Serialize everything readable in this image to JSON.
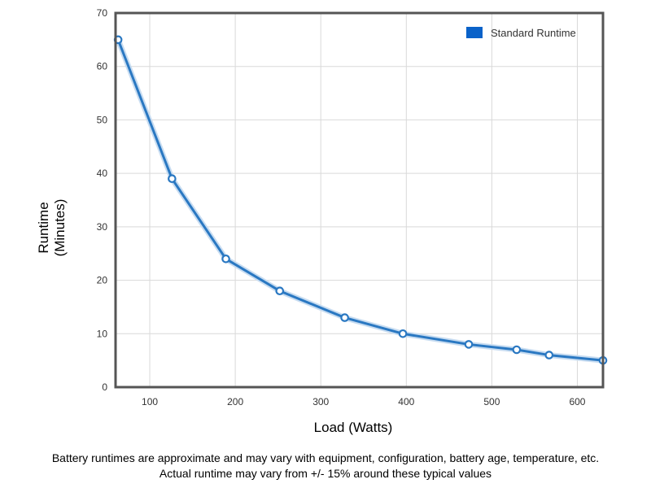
{
  "chart_data": {
    "type": "line",
    "xlabel": "Load (Watts)",
    "ylabel_lines": [
      "Runtime",
      "(Minutes)"
    ],
    "xlim": [
      60,
      630
    ],
    "ylim": [
      0,
      70
    ],
    "xticks": [
      100,
      200,
      300,
      400,
      500,
      600
    ],
    "yticks": [
      0,
      10,
      20,
      30,
      40,
      50,
      60,
      70
    ],
    "grid": true,
    "legend_position": "top-right",
    "series": [
      {
        "name": "Standard Runtime",
        "color": "#2a78c2",
        "x": [
          63,
          126,
          189,
          252,
          328,
          396,
          473,
          529,
          567,
          630
        ],
        "y": [
          65,
          39,
          24,
          18,
          13,
          10,
          8,
          7,
          6,
          5
        ]
      }
    ]
  },
  "footnote": {
    "line1": "Battery runtimes are approximate and may vary with equipment, configuration, battery age, temperature, etc.",
    "line2": "Actual runtime may vary from +/- 15% around these typical values"
  },
  "colors": {
    "series": "#2a78c2",
    "legend_swatch": "#0a62c9",
    "frame": "#555555",
    "grid": "#d9d9d9"
  }
}
